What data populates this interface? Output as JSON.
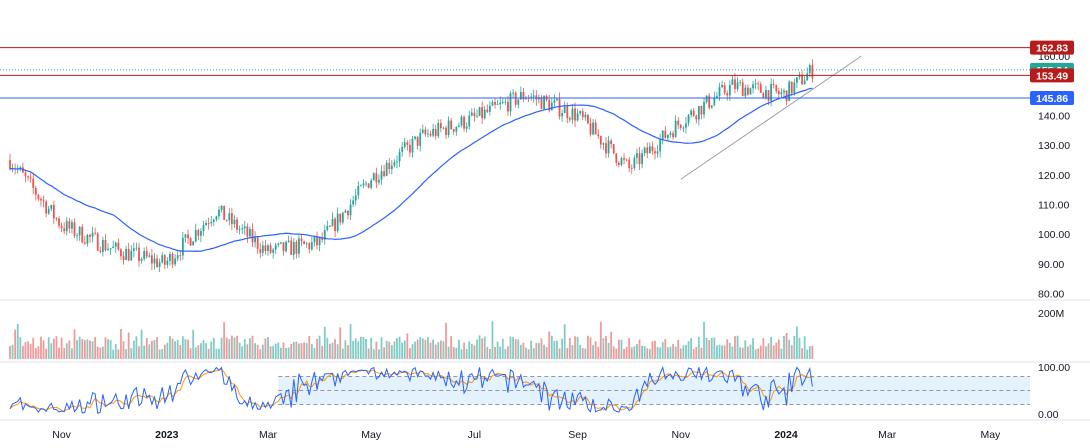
{
  "colors": {
    "up": "#26a69a",
    "down": "#ef5350",
    "ma": "#2962ff",
    "stoch_k": "#2962ff",
    "stoch_d": "#ff9800",
    "resistance": "#d32f2f",
    "support": "#2962ff",
    "trendline": "#9e9e9e",
    "stoch_band": "#e3f2fd"
  },
  "chart_data": [
    {
      "type": "candlestick",
      "price_axis_ticks": [
        "160.00",
        "140.00",
        "130.00",
        "120.00",
        "110.00",
        "100.00",
        "90.00",
        "80.00"
      ],
      "price_axis_tick_values": [
        160,
        140,
        130,
        120,
        110,
        100,
        90,
        80
      ],
      "ylim": [
        75,
        166
      ],
      "x_axis_ticks": [
        "Nov",
        "2023",
        "Mar",
        "May",
        "Jul",
        "Sep",
        "Nov",
        "2024",
        "Mar",
        "May"
      ],
      "x_axis_tick_positions_month_index": [
        1,
        3,
        5,
        7,
        9,
        11,
        13,
        15,
        17,
        19
      ],
      "series": {
        "close_trend_months": [
          0,
          1,
          2,
          3,
          4,
          5,
          6,
          7,
          8,
          9,
          10,
          11,
          12,
          13,
          14,
          15,
          15.6
        ],
        "close_trend_values": [
          125,
          103,
          95,
          90,
          108,
          94,
          97,
          119,
          133,
          139,
          147,
          140,
          122,
          138,
          150,
          147,
          156
        ]
      },
      "horizontal_levels": [
        {
          "label": "162.83",
          "value": 162.83,
          "color": "#b71c1c"
        },
        {
          "label": "155.34",
          "value": 155.34,
          "color": "#26a69a",
          "dotted": true
        },
        {
          "label": "153.49",
          "value": 153.49,
          "color": "#b71c1c"
        },
        {
          "label": "145.86",
          "value": 145.86,
          "color": "#2962ff"
        }
      ],
      "trendline": {
        "from": [
          13.0,
          118.5
        ],
        "to": [
          16.5,
          160
        ]
      }
    },
    {
      "type": "bar",
      "name": "volume",
      "axis_tick": "200M",
      "ylim": [
        0,
        250
      ]
    },
    {
      "type": "line",
      "name": "stochastic",
      "axis_ticks": [
        "100.00",
        "0.00"
      ],
      "ylim": [
        0,
        100
      ],
      "bands": [
        80,
        50,
        20
      ]
    }
  ]
}
